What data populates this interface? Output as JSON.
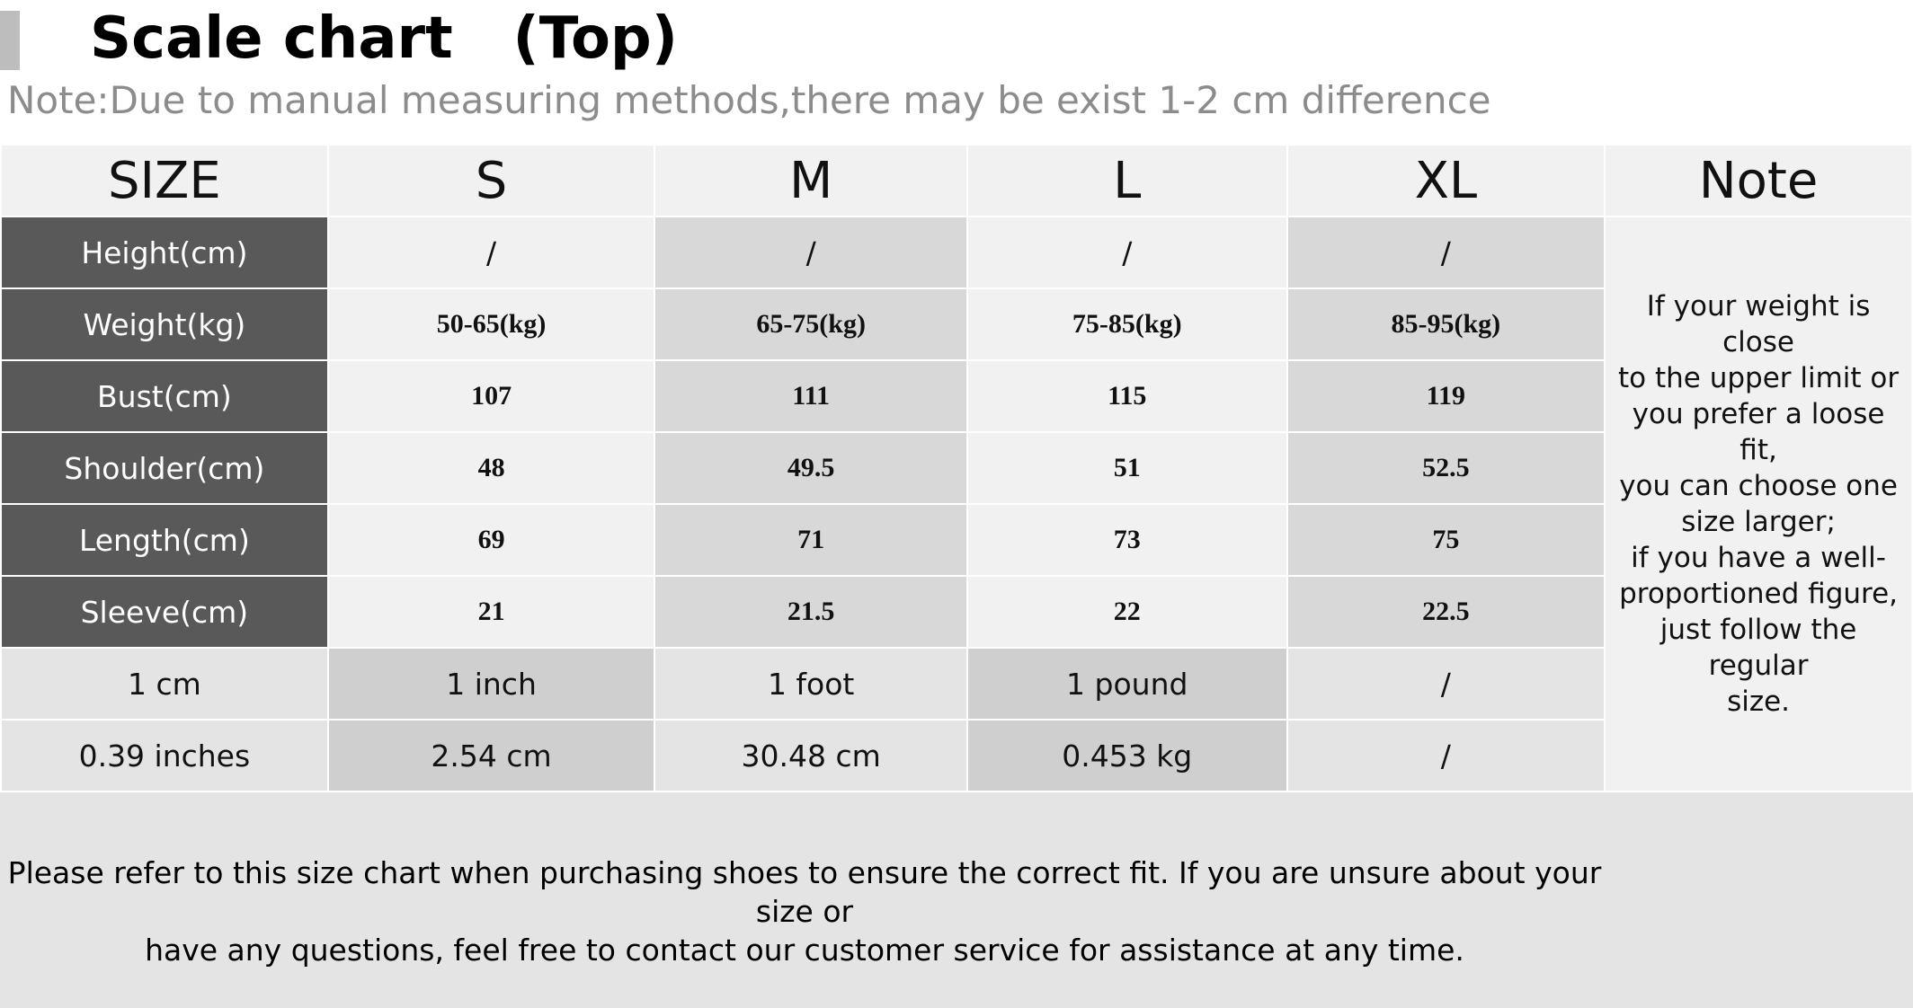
{
  "title": "Scale chart   (Top)",
  "note_line": "Note:Due to manual measuring methods,there may be exist 1-2 cm difference",
  "table": {
    "header": [
      "SIZE",
      "S",
      "M",
      "L",
      "XL",
      "Note"
    ],
    "rows": [
      {
        "label": "Height(cm)",
        "values": [
          "/",
          "/",
          "/",
          "/"
        ]
      },
      {
        "label": "Weight(kg)",
        "values": [
          "50-65(kg)",
          "65-75(kg)",
          "75-85(kg)",
          "85-95(kg)"
        ]
      },
      {
        "label": "Bust(cm)",
        "values": [
          "107",
          "111",
          "115",
          "119"
        ]
      },
      {
        "label": "Shoulder(cm)",
        "values": [
          "48",
          "49.5",
          "51",
          "52.5"
        ]
      },
      {
        "label": "Length(cm)",
        "values": [
          "69",
          "71",
          "73",
          "75"
        ]
      },
      {
        "label": "Sleeve(cm)",
        "values": [
          "21",
          "21.5",
          "22",
          "22.5"
        ]
      }
    ],
    "conversion": [
      [
        "1 cm",
        "1 inch",
        "1 foot",
        "1 pound",
        "/"
      ],
      [
        "0.39 inches",
        "2.54 cm",
        "30.48 cm",
        "0.453 kg",
        "/"
      ]
    ],
    "note_lines": [
      "If your weight is close",
      "to the upper limit or",
      "you prefer a loose fit,",
      "you can choose one",
      "size larger;",
      "if you have a well-",
      "proportioned figure,",
      "just follow the regular",
      "size."
    ]
  },
  "footer": {
    "line1": "Please refer to this size chart when purchasing shoes to ensure the correct fit. If you are unsure about your size or",
    "line2": "have any questions, feel free to contact our customer service for assistance at any time."
  }
}
